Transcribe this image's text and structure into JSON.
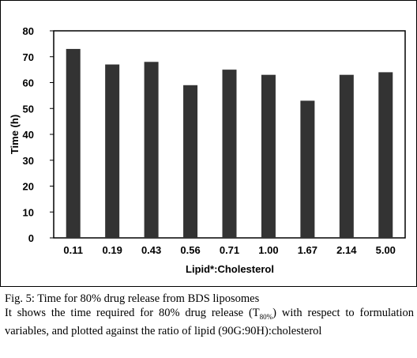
{
  "chart_data": {
    "type": "bar",
    "categories": [
      "0.11",
      "0.19",
      "0.43",
      "0.56",
      "0.71",
      "1.00",
      "1.67",
      "2.14",
      "5.00"
    ],
    "values": [
      73,
      67,
      68,
      59,
      65,
      63,
      53,
      63,
      64
    ],
    "xlabel": "Lipid*:Cholesterol",
    "ylabel": "Time (h)",
    "ylim": [
      0,
      80
    ],
    "yticks": [
      "0",
      "10",
      "20",
      "30",
      "40",
      "50",
      "60",
      "70",
      "80"
    ],
    "grid": false,
    "legend": "none",
    "bar_color": "#333333"
  },
  "caption": {
    "title": "Fig. 5: Time for 80% drug release from BDS liposomes",
    "desc_before": "It shows the time required for 80% drug release (T",
    "desc_sub": "80%",
    "desc_after": ") with respect to formulation variables, and plotted against the ratio of lipid (90G:90H):cholesterol"
  }
}
